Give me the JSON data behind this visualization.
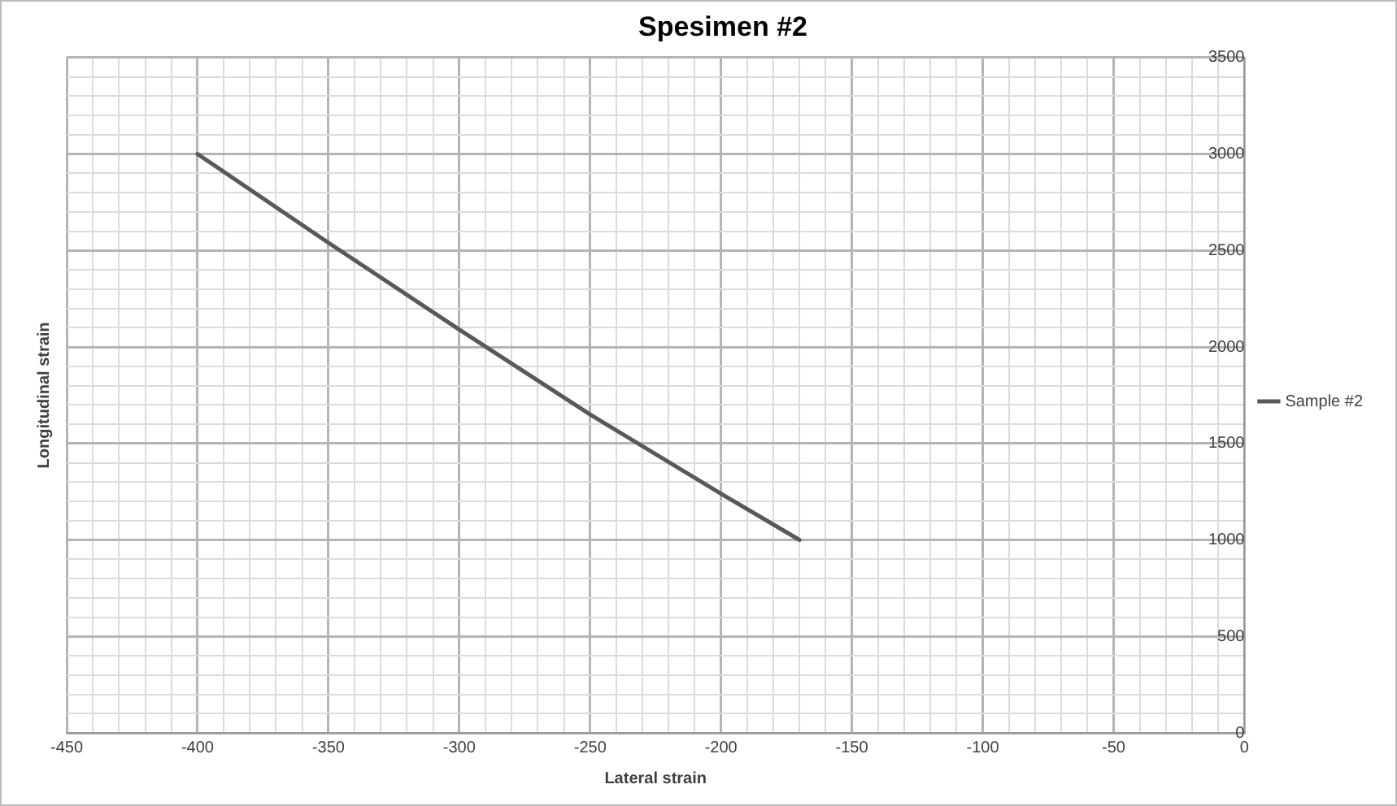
{
  "chart_data": {
    "type": "line",
    "title": "Spesimen #2",
    "xlabel": "Lateral strain",
    "ylabel": "Longitudinal strain",
    "x": [
      -400,
      -350,
      -300,
      -250,
      -200,
      -170
    ],
    "series": [
      {
        "name": "Sample #2",
        "color": "#595959",
        "values": [
          3000,
          2540,
          2090,
          1650,
          1240,
          1000
        ]
      }
    ],
    "xlim": [
      -450,
      0
    ],
    "xticks": [
      -450,
      {
        "value": -440,
        "label": null
      },
      {
        "value": -430,
        "label": null
      },
      {
        "value": -420,
        "label": null
      },
      {
        "value": -410,
        "label": null
      },
      -400,
      {
        "value": -390,
        "label": null
      },
      {
        "value": -380,
        "label": null
      },
      {
        "value": -370,
        "label": null
      },
      {
        "value": -360,
        "label": null
      },
      -350,
      {
        "value": -340,
        "label": null
      },
      {
        "value": -330,
        "label": null
      },
      {
        "value": -320,
        "label": null
      },
      {
        "value": -310,
        "label": null
      },
      -300,
      {
        "value": -290,
        "label": null
      },
      {
        "value": -280,
        "label": null
      },
      {
        "value": -270,
        "label": null
      },
      {
        "value": -260,
        "label": null
      },
      -250,
      {
        "value": -240,
        "label": null
      },
      {
        "value": -230,
        "label": null
      },
      {
        "value": -220,
        "label": null
      },
      {
        "value": -210,
        "label": null
      },
      -200,
      {
        "value": -190,
        "label": null
      },
      {
        "value": -180,
        "label": null
      },
      {
        "value": -170,
        "label": null
      },
      {
        "value": -160,
        "label": null
      },
      -150,
      {
        "value": -140,
        "label": null
      },
      {
        "value": -130,
        "label": null
      },
      {
        "value": -120,
        "label": null
      },
      {
        "value": -110,
        "label": null
      },
      -100,
      {
        "value": -90,
        "label": null
      },
      {
        "value": -80,
        "label": null
      },
      {
        "value": -70,
        "label": null
      },
      {
        "value": -60,
        "label": null
      },
      -50,
      {
        "value": -40,
        "label": null
      },
      {
        "value": -30,
        "label": null
      },
      {
        "value": -20,
        "label": null
      },
      {
        "value": -10,
        "label": null
      },
      0
    ],
    "ylim": [
      0,
      3500
    ],
    "yticks": [
      0,
      {
        "value": 100,
        "label": null
      },
      {
        "value": 200,
        "label": null
      },
      {
        "value": 300,
        "label": null
      },
      {
        "value": 400,
        "label": null
      },
      500,
      {
        "value": 600,
        "label": null
      },
      {
        "value": 700,
        "label": null
      },
      {
        "value": 800,
        "label": null
      },
      {
        "value": 900,
        "label": null
      },
      1000,
      {
        "value": 1100,
        "label": null
      },
      {
        "value": 1200,
        "label": null
      },
      {
        "value": 1300,
        "label": null
      },
      {
        "value": 1400,
        "label": null
      },
      1500,
      {
        "value": 1600,
        "label": null
      },
      {
        "value": 1700,
        "label": null
      },
      {
        "value": 1800,
        "label": null
      },
      {
        "value": 1900,
        "label": null
      },
      2000,
      {
        "value": 2100,
        "label": null
      },
      {
        "value": 2200,
        "label": null
      },
      {
        "value": 2300,
        "label": null
      },
      {
        "value": 2400,
        "label": null
      },
      2500,
      {
        "value": 2600,
        "label": null
      },
      {
        "value": 2700,
        "label": null
      },
      {
        "value": 2800,
        "label": null
      },
      {
        "value": 2900,
        "label": null
      },
      3000,
      {
        "value": 3100,
        "label": null
      },
      {
        "value": 3200,
        "label": null
      },
      {
        "value": 3300,
        "label": null
      },
      {
        "value": 3400,
        "label": null
      },
      3500
    ],
    "grid": true,
    "legend": "right",
    "marker": "none",
    "line_style": "solid"
  }
}
